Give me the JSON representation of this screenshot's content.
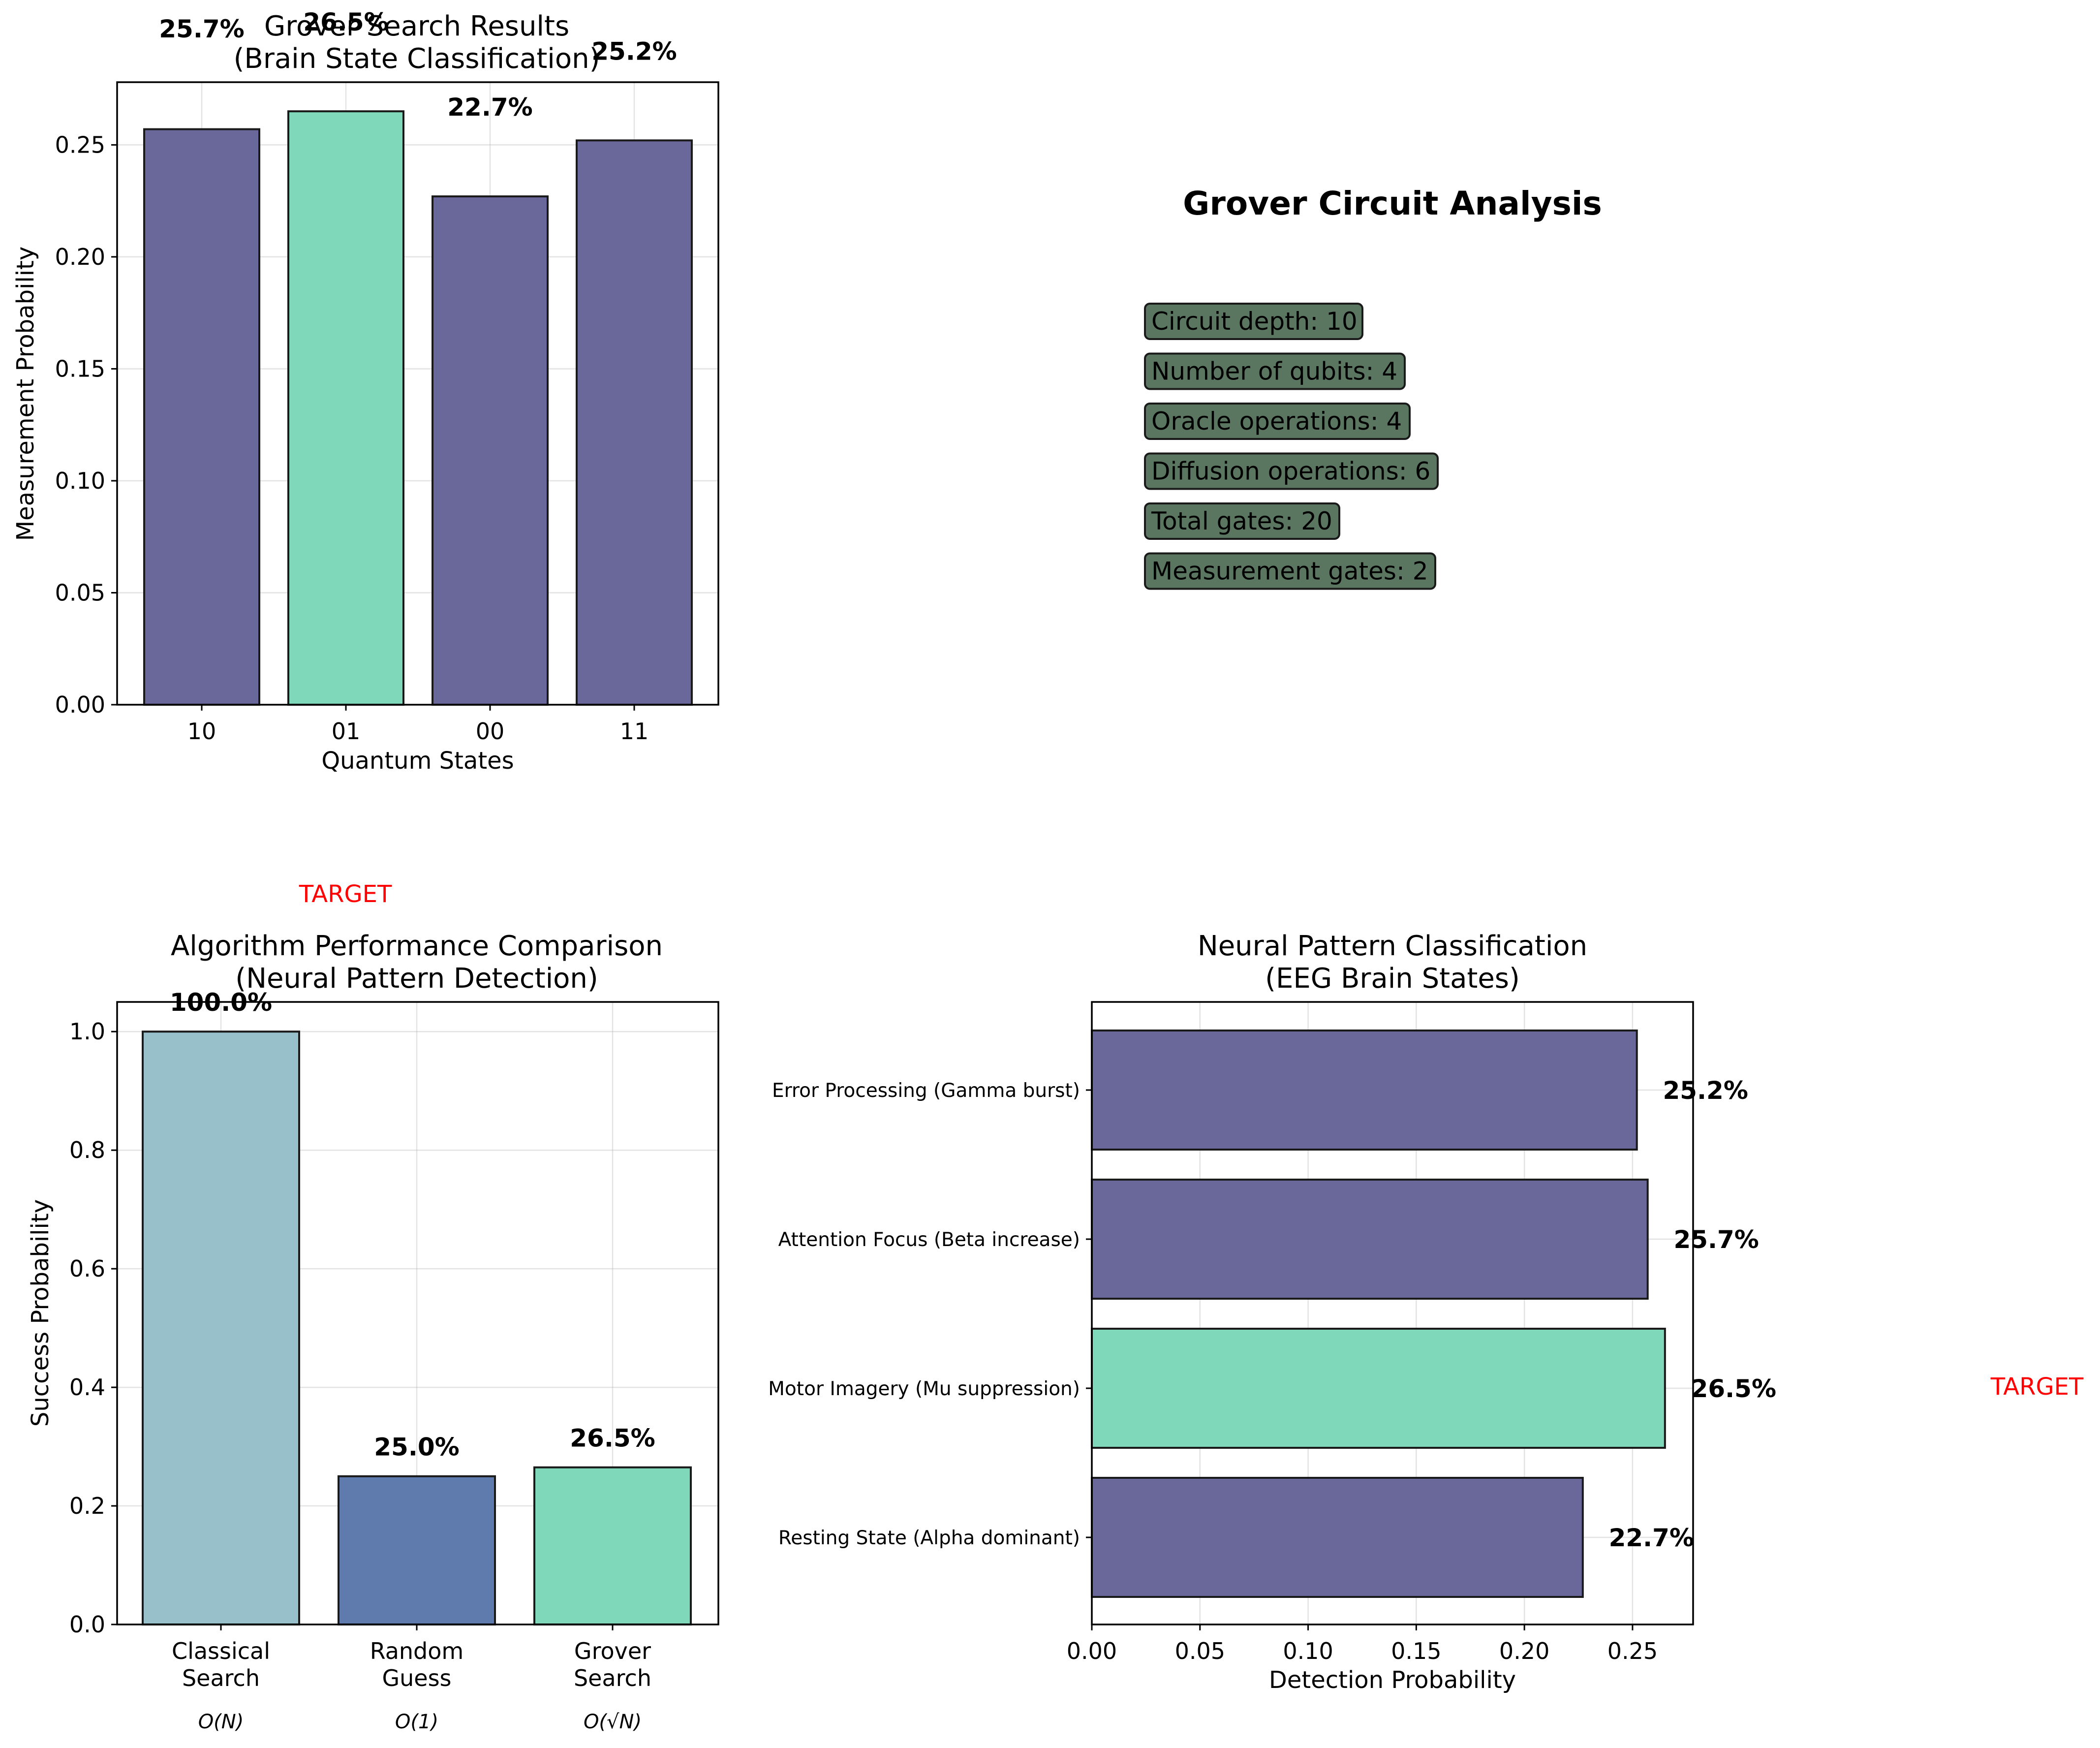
{
  "colors": {
    "primary_bar": "#6a679b",
    "target_bar": "#80d8bb",
    "classical_bar": "#98c0ca",
    "random_bar": "#5f7bad",
    "box_fill": "#5a7560",
    "target_label": "#ff0000"
  },
  "target_label": "TARGET",
  "info_panel": {
    "title": "Grover Circuit Analysis",
    "items": [
      "Circuit depth: 10",
      "Number of qubits: 4",
      "Oracle operations: 4",
      "Diffusion operations: 6",
      "Total gates: 20",
      "Measurement gates: 2"
    ]
  },
  "chart_data": [
    {
      "id": "grover_results",
      "type": "bar",
      "title": "Grover Search Results\n(Brain State Classification)",
      "xlabel": "Quantum States",
      "ylabel": "Measurement Probability",
      "categories": [
        "10",
        "01",
        "00",
        "11"
      ],
      "values": [
        0.257,
        0.265,
        0.227,
        0.252
      ],
      "value_labels": [
        "25.7%",
        "26.5%",
        "22.7%",
        "25.2%"
      ],
      "highlight_index": 1,
      "ylim": [
        0,
        0.278
      ],
      "yticks": [
        "0.00",
        "0.05",
        "0.10",
        "0.15",
        "0.20",
        "0.25"
      ],
      "grid": true
    },
    {
      "id": "algorithm_comparison",
      "type": "bar",
      "title": "Algorithm Performance Comparison\n(Neural Pattern Detection)",
      "xlabel": "",
      "ylabel": "Success Probability",
      "categories": [
        "Classical\nSearch",
        "Random\nGuess",
        "Grover\nSearch"
      ],
      "complexity": [
        "O(N)",
        "O(1)",
        "O(√N)"
      ],
      "values": [
        1.0,
        0.25,
        0.265
      ],
      "value_labels": [
        "100.0%",
        "25.0%",
        "26.5%"
      ],
      "ylim": [
        0,
        1.05
      ],
      "yticks": [
        "0.0",
        "0.2",
        "0.4",
        "0.6",
        "0.8",
        "1.0"
      ],
      "grid": true
    },
    {
      "id": "neural_classification",
      "type": "bar",
      "orientation": "horizontal",
      "title": "Neural Pattern Classification\n(EEG Brain States)",
      "xlabel": "Detection Probability",
      "ylabel": "",
      "categories": [
        "Resting State (Alpha dominant)",
        "Motor Imagery (Mu suppression)",
        "Attention Focus (Beta increase)",
        "Error Processing (Gamma burst)"
      ],
      "values": [
        0.227,
        0.265,
        0.257,
        0.252
      ],
      "value_labels": [
        "22.7%",
        "26.5%",
        "25.7%",
        "25.2%"
      ],
      "highlight_index": 1,
      "xlim": [
        0,
        0.278
      ],
      "xticks": [
        "0.00",
        "0.05",
        "0.10",
        "0.15",
        "0.20",
        "0.25"
      ],
      "grid": true
    }
  ]
}
